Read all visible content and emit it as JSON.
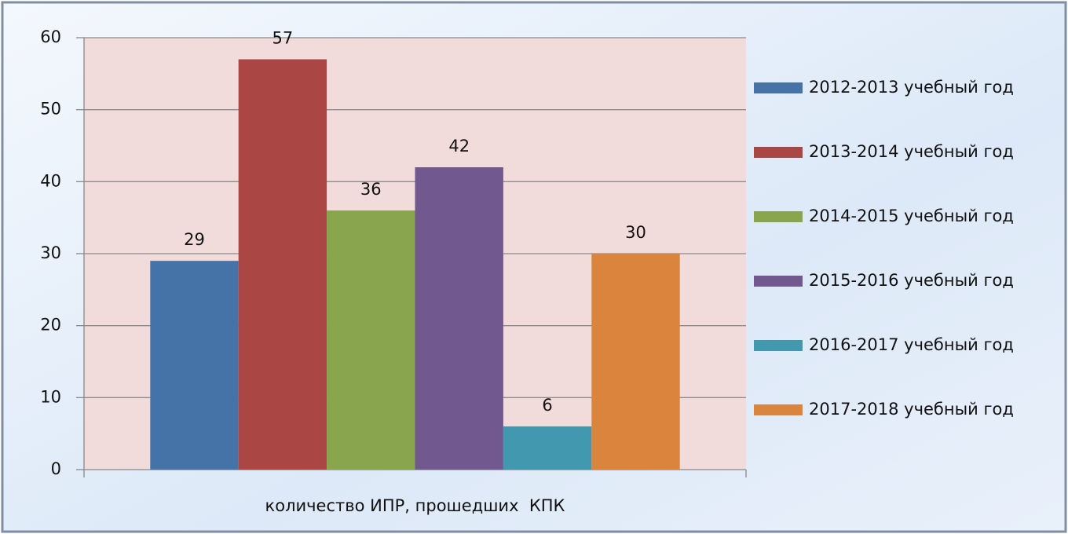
{
  "chart_data": {
    "type": "bar",
    "categories": [
      "количество ИПР, прошедших  КПК"
    ],
    "series": [
      {
        "name": "2012-2013 учебный год",
        "color": "#4572a7",
        "values": [
          29
        ]
      },
      {
        "name": "2013-2014 учебный год",
        "color": "#aa4643",
        "values": [
          57
        ]
      },
      {
        "name": "2014-2015 учебный год",
        "color": "#89a54e",
        "values": [
          36
        ]
      },
      {
        "name": "2015-2016 учебный год",
        "color": "#71588f",
        "values": [
          42
        ]
      },
      {
        "name": "2016-2017 учебный год",
        "color": "#4198af",
        "values": [
          6
        ]
      },
      {
        "name": "2017-2018 учебный год",
        "color": "#db843d",
        "values": [
          30
        ]
      }
    ],
    "ylim": [
      0,
      60
    ],
    "yticks": [
      0,
      10,
      20,
      30,
      40,
      50,
      60
    ],
    "grid": true,
    "legend": "right"
  }
}
